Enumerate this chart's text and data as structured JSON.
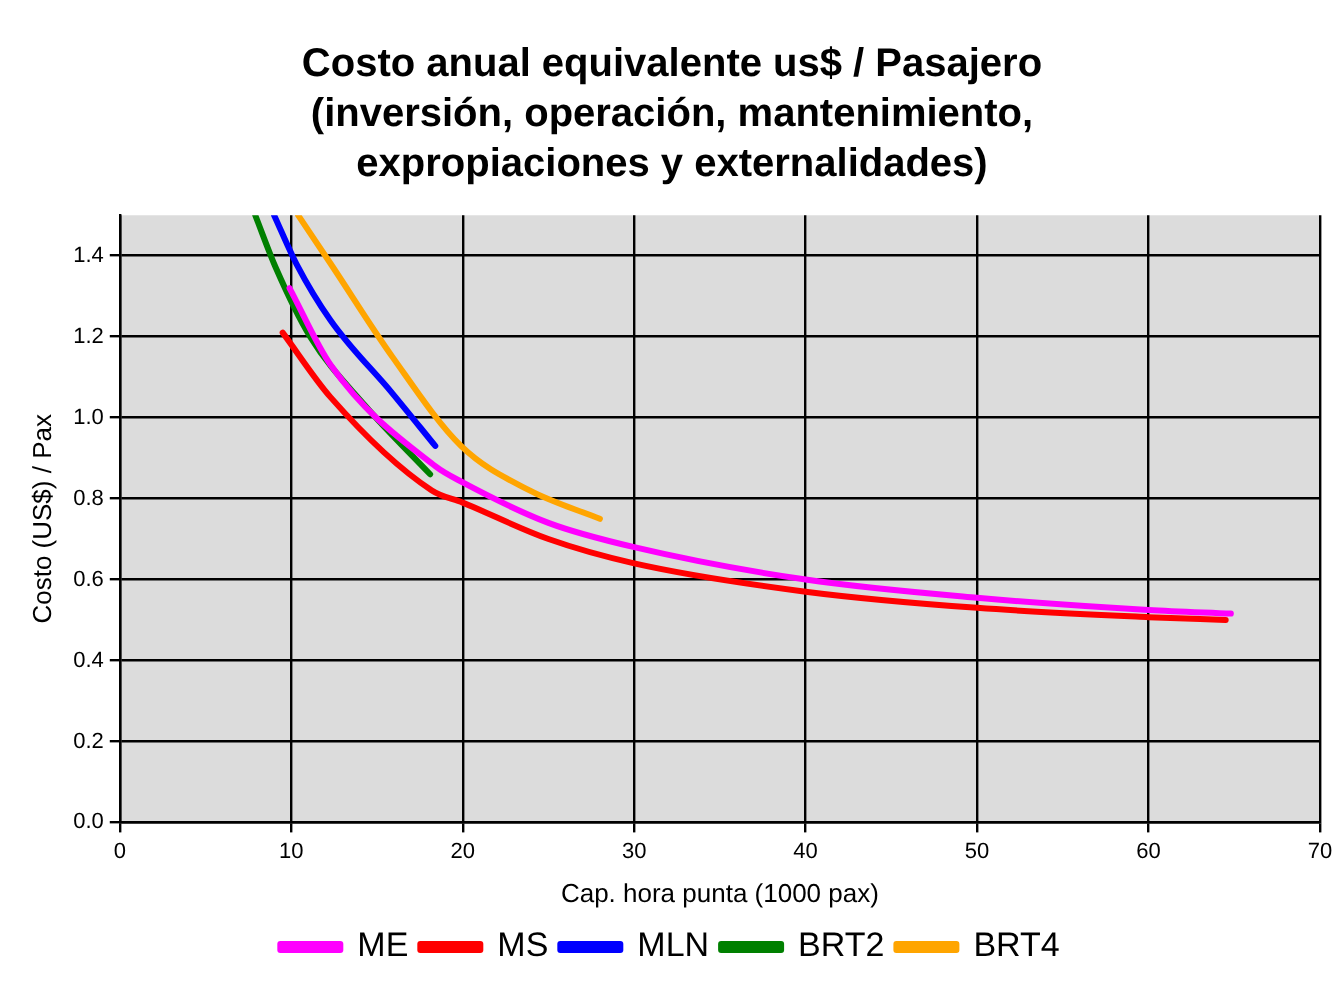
{
  "chart_data": {
    "type": "line",
    "title": "Costo anual equivalente us$ / Pasajero (inversión, operación, mantenimiento, expropiaciones y externalidades)",
    "xlabel": "Cap. hora punta (1000 pax)",
    "ylabel": "Costo (US$) / Pax",
    "xlim": [
      0,
      70
    ],
    "xticks": [
      0,
      10,
      20,
      30,
      40,
      50,
      60,
      70
    ],
    "ylim": [
      0,
      1.5
    ],
    "yticks": [
      {
        "value": 0,
        "label": "0.0"
      },
      {
        "value": 0.2,
        "label": "0.2"
      },
      {
        "value": 0.4,
        "label": "0.4"
      },
      {
        "value": 0.6,
        "label": "0.6"
      },
      {
        "value": 0.8,
        "label": "0.8"
      },
      {
        "value": 1,
        "label": "1.0"
      },
      {
        "value": 1.2,
        "label": "1.2"
      },
      {
        "value": 1.4,
        "label": "1.4"
      }
    ],
    "grid": true,
    "legend": "bottom",
    "marker": "none",
    "line_style": "solid",
    "series": [
      {
        "name": "ME",
        "color": "#ff00ff",
        "x": [
          9.9,
          12.3,
          18.4,
          20,
          25,
          30,
          40,
          50,
          60,
          64.8
        ],
        "values": [
          1.32,
          1.13,
          0.88,
          0.84,
          0.74,
          0.68,
          0.6,
          0.555,
          0.525,
          0.516
        ]
      },
      {
        "name": "MS",
        "color": "#ff0000",
        "x": [
          9.5,
          12.3,
          18.2,
          20,
          25,
          30,
          40,
          50,
          60,
          64.5
        ],
        "values": [
          1.21,
          1.05,
          0.82,
          0.79,
          0.7,
          0.64,
          0.57,
          0.53,
          0.507,
          0.5
        ]
      },
      {
        "name": "MLN",
        "color": "#0000ff",
        "x": [
          9.0,
          10.3,
          12.3,
          15.9,
          18.4
        ],
        "values": [
          1.5,
          1.38,
          1.24,
          1.06,
          0.93
        ]
      },
      {
        "name": "BRT2",
        "color": "#008000",
        "x": [
          7.9,
          9.1,
          11.1,
          14.3,
          18.1
        ],
        "values": [
          1.5,
          1.37,
          1.2,
          1.03,
          0.86
        ]
      },
      {
        "name": "BRT4",
        "color": "#ffa500",
        "x": [
          10.4,
          12.3,
          15.9,
          19.9,
          23.9,
          28.0
        ],
        "values": [
          1.5,
          1.38,
          1.15,
          0.93,
          0.82,
          0.75
        ]
      }
    ]
  }
}
